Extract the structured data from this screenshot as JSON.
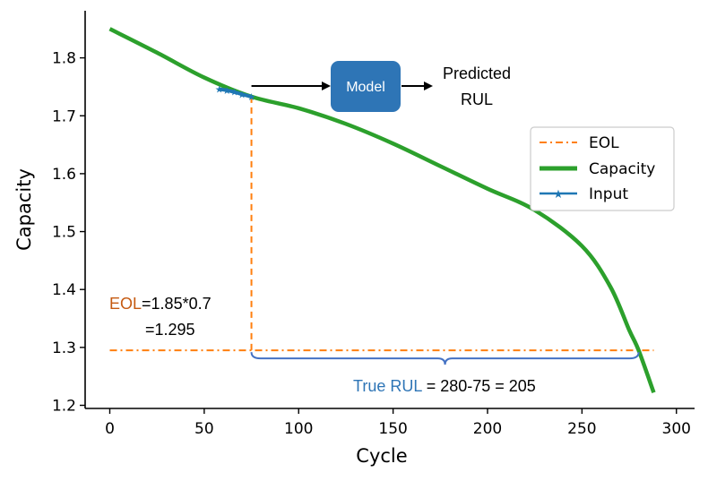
{
  "chart_data": {
    "type": "line",
    "xlabel": "Cycle",
    "ylabel": "Capacity",
    "xlim": [
      -15,
      300
    ],
    "ylim": [
      1.19,
      1.925
    ],
    "x_ticks": [
      0,
      50,
      100,
      150,
      200,
      250,
      300
    ],
    "y_ticks": [
      1.2,
      1.3,
      1.4,
      1.5,
      1.6,
      1.7,
      1.8
    ],
    "x_tick_labels": [
      "0",
      "50",
      "100",
      "150",
      "200",
      "250",
      "300"
    ],
    "y_tick_labels": [
      "1.2",
      "1.3",
      "1.4",
      "1.5",
      "1.6",
      "1.7",
      "1.8"
    ],
    "series": [
      {
        "name": "EOL",
        "style": "dash-dot",
        "color": "#ff7f0e",
        "x": [
          0,
          288
        ],
        "y": [
          1.295,
          1.295
        ]
      },
      {
        "name": "Capacity",
        "style": "solid-thick",
        "color": "#2ca02c",
        "x": [
          0,
          25,
          50,
          75,
          100,
          125,
          150,
          175,
          200,
          225,
          250,
          265,
          275,
          280,
          288
        ],
        "y": [
          1.85,
          1.809,
          1.766,
          1.733,
          1.713,
          1.686,
          1.652,
          1.613,
          1.574,
          1.537,
          1.475,
          1.405,
          1.33,
          1.295,
          1.222
        ]
      },
      {
        "name": "Input",
        "style": "solid-star",
        "color": "#1f77b4",
        "x": [
          58,
          62,
          66,
          70,
          75
        ],
        "y": [
          1.746,
          1.744,
          1.741,
          1.737,
          1.733
        ]
      }
    ],
    "eol_vertical": {
      "x": 75,
      "y_from": 1.733,
      "y_to": 1.295
    },
    "rul_brace": {
      "x_from": 75,
      "x_to": 280,
      "y": 1.295
    },
    "legend": {
      "position": "upper-right",
      "entries": [
        "EOL",
        "Capacity",
        "Input"
      ]
    },
    "annotations": {
      "eol_prefix": "EOL",
      "eol_line1": "=1.85*0.7",
      "eol_line2": "=1.295",
      "rul_prefix": "True RUL",
      "rul_rest": " = 280-75 = 205",
      "model_label": "Model",
      "predicted_line1": "Predicted",
      "predicted_line2": "RUL"
    },
    "colors": {
      "eol": "#ff7f0e",
      "capacity": "#2ca02c",
      "input": "#1f77b4",
      "model_box": "#2e75b6",
      "eol_text": "#c55a11",
      "rul_text": "#2e75b6",
      "brace": "#4472c4"
    }
  }
}
